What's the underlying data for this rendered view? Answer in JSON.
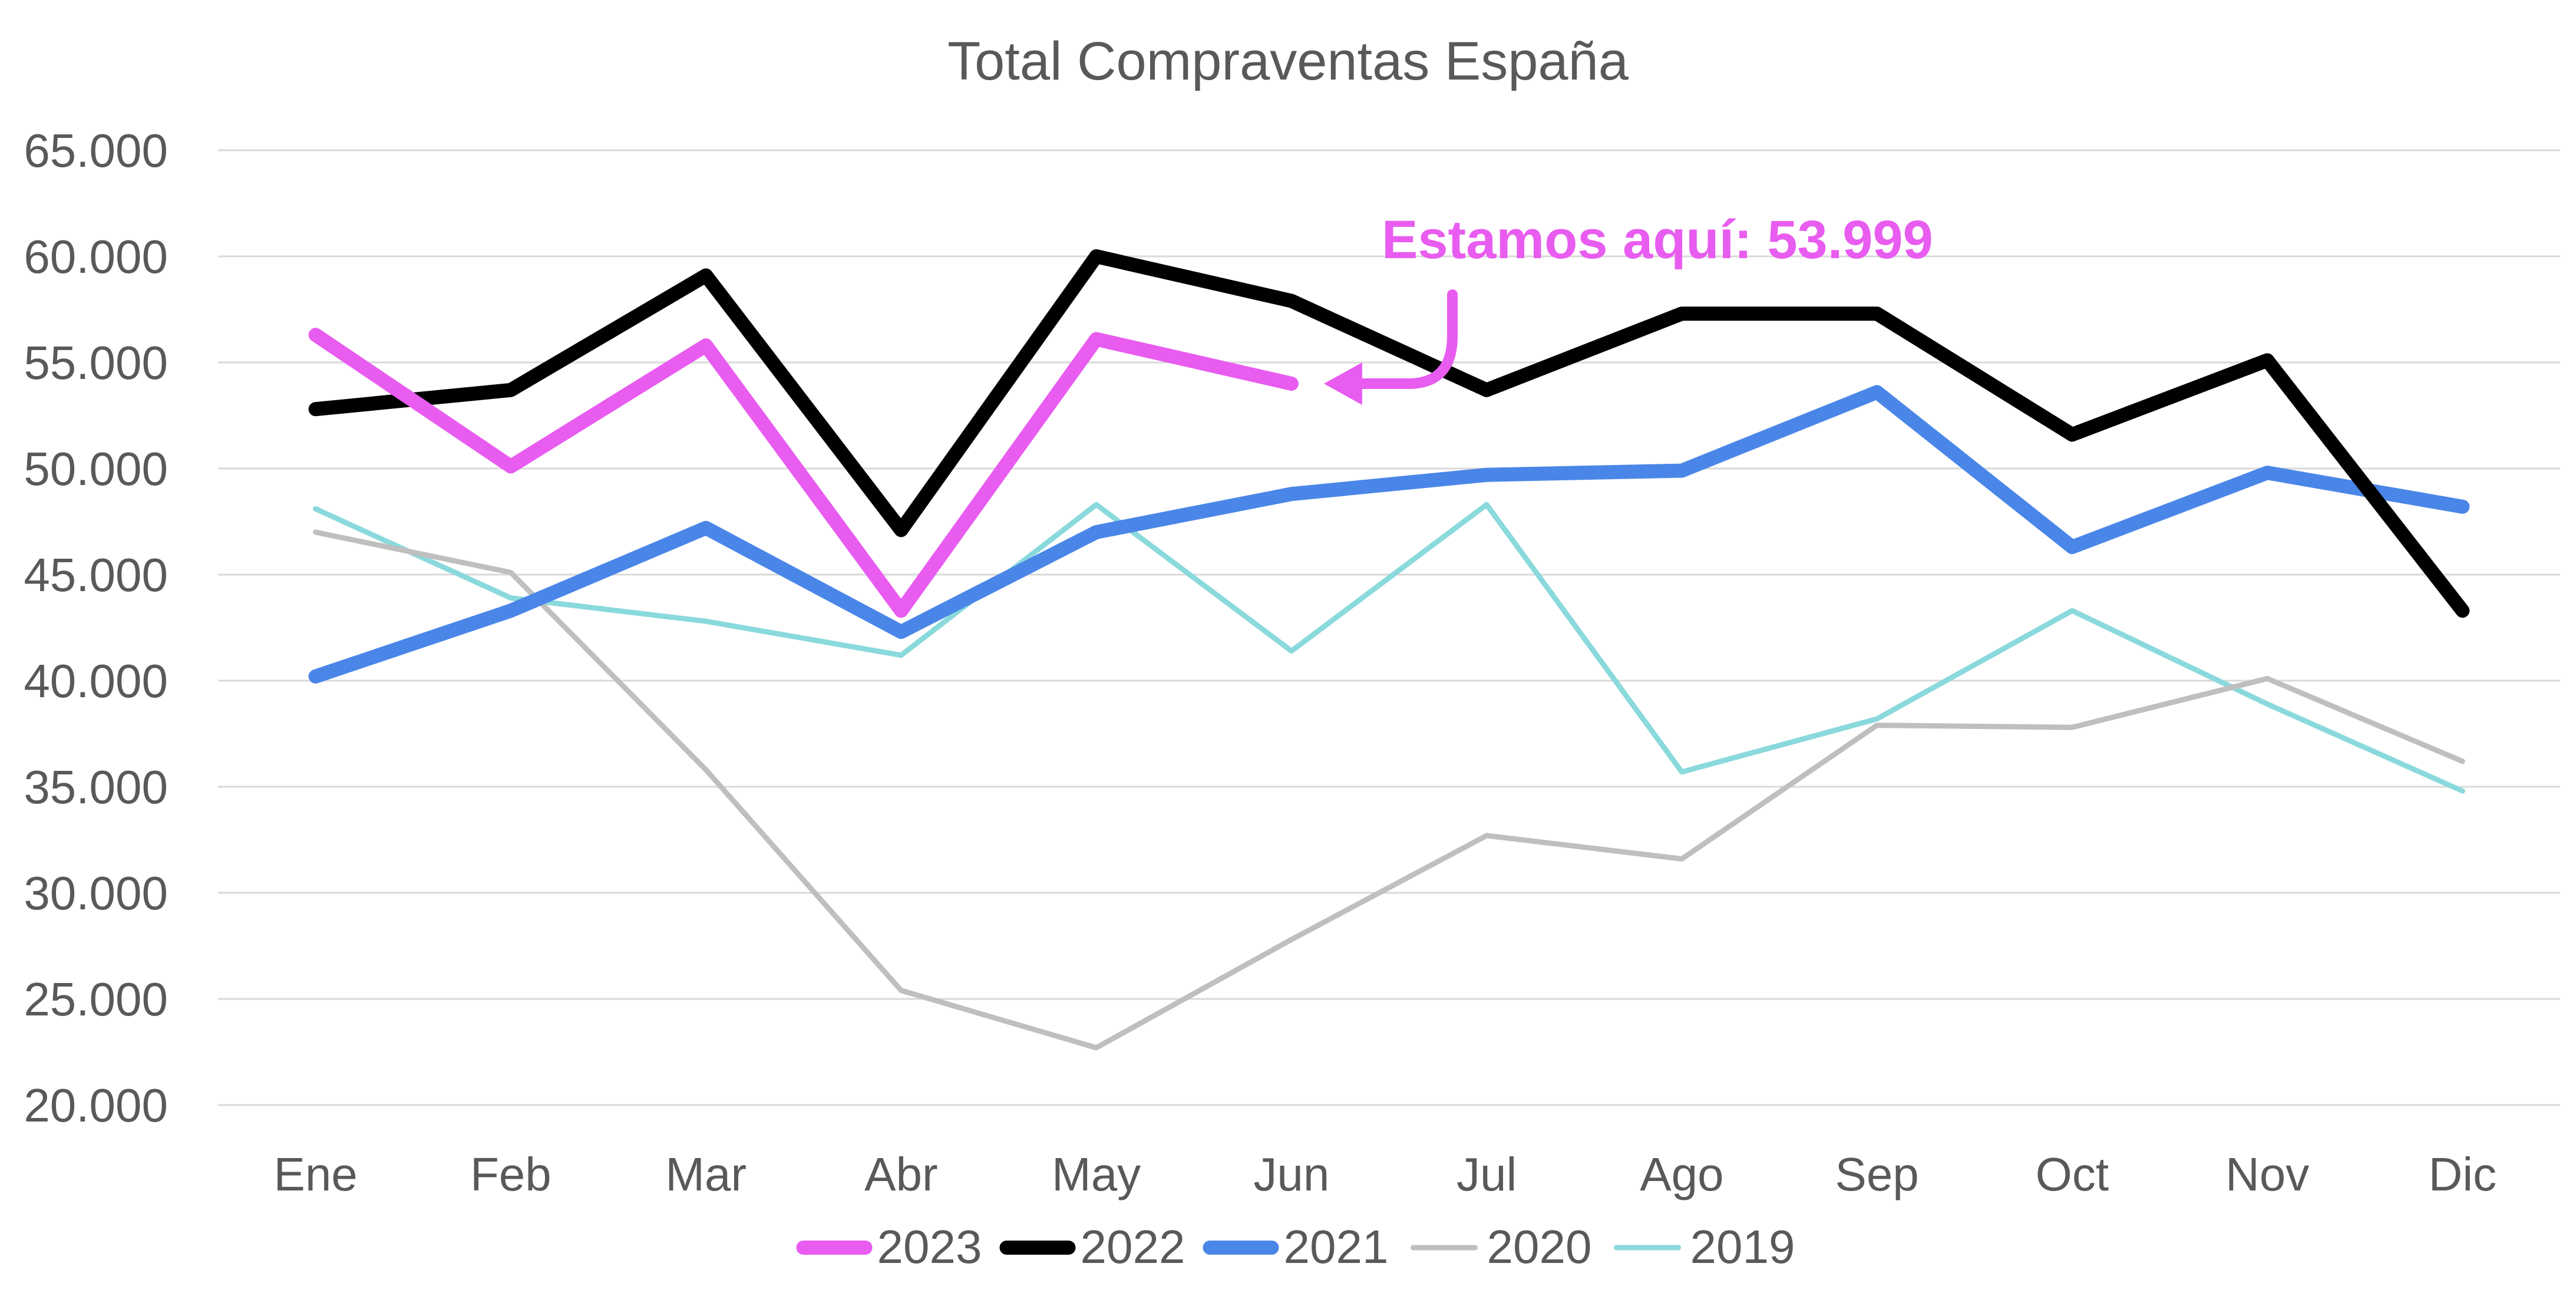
{
  "chart_data": {
    "type": "line",
    "title": "Total Compraventas España",
    "xlabel": "",
    "ylabel": "",
    "categories": [
      "Ene",
      "Feb",
      "Mar",
      "Abr",
      "May",
      "Jun",
      "Jul",
      "Ago",
      "Sep",
      "Oct",
      "Nov",
      "Dic"
    ],
    "ylim": [
      20000,
      65000
    ],
    "yticks": [
      "20.000",
      "25.000",
      "30.000",
      "35.000",
      "40.000",
      "45.000",
      "50.000",
      "55.000",
      "60.000",
      "65.000"
    ],
    "grid": true,
    "legend_position": "bottom",
    "annotation": {
      "text": "Estamos aquí: 53.999",
      "color": "#e85cf0",
      "points_to_series": "2023",
      "points_to_category": "Jun",
      "value": 53999
    },
    "series": [
      {
        "name": "2023",
        "color": "#e85cf0",
        "weight": "thick",
        "values": [
          56300,
          50100,
          55800,
          43300,
          56100,
          53999,
          null,
          null,
          null,
          null,
          null,
          null
        ]
      },
      {
        "name": "2022",
        "color": "#000000",
        "weight": "thick",
        "values": [
          52800,
          53700,
          59100,
          47100,
          60000,
          57900,
          53700,
          57300,
          57300,
          51600,
          55100,
          43300
        ]
      },
      {
        "name": "2021",
        "color": "#4a86e8",
        "weight": "thick",
        "values": [
          40200,
          43300,
          47200,
          42300,
          47000,
          48800,
          49700,
          49900,
          53600,
          46300,
          49800,
          48200
        ]
      },
      {
        "name": "2020",
        "color": "#bfbfbf",
        "weight": "thin",
        "values": [
          47000,
          45100,
          35800,
          25400,
          22700,
          27800,
          32700,
          31600,
          37900,
          37800,
          40100,
          36200
        ]
      },
      {
        "name": "2019",
        "color": "#8ad9dc",
        "weight": "thin",
        "values": [
          48100,
          43900,
          42800,
          41200,
          48300,
          41400,
          48300,
          35700,
          38200,
          43300,
          38900,
          34800
        ]
      }
    ]
  }
}
